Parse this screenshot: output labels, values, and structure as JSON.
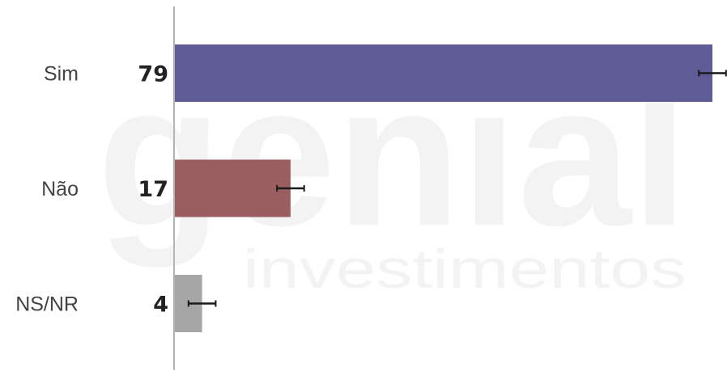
{
  "watermark": {
    "brand": "genial",
    "tagline": "investimentos"
  },
  "chart_data": {
    "type": "bar",
    "orientation": "horizontal",
    "categories": [
      "Sim",
      "Não",
      "NS/NR"
    ],
    "values": [
      79,
      17,
      4
    ],
    "value_labels": [
      "79",
      "17",
      "4"
    ],
    "error_margin": 2,
    "colors": [
      "#5f5b96",
      "#9a5e60",
      "#a6a6a6"
    ],
    "xlim": [
      0,
      81
    ],
    "grid": false,
    "legend": "none",
    "title": "",
    "xlabel": "",
    "ylabel": ""
  }
}
